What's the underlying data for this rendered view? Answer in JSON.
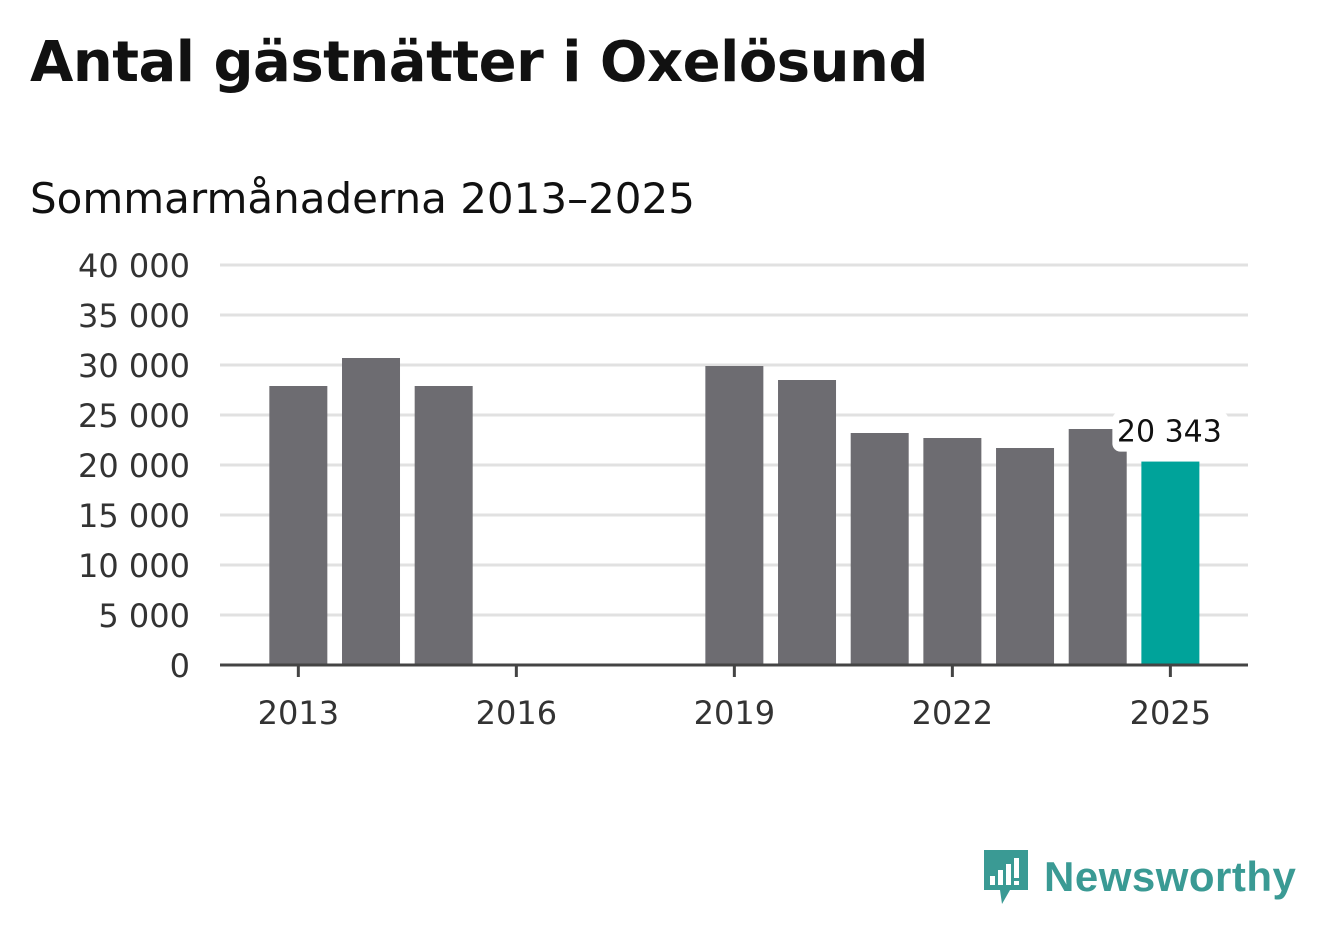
{
  "title": "Antal gästnätter i Oxelösund",
  "subtitle": "Sommarmånaderna 2013–2025",
  "brand": {
    "name": "Newsworthy",
    "color": "#3a9a94",
    "icon": "newsworthy-logo-icon"
  },
  "colors": {
    "bar": "#6d6c71",
    "highlight": "#00a39a",
    "grid": "#e1e1e1",
    "axis": "#444444"
  },
  "chart_data": {
    "type": "bar",
    "categories": [
      "2013",
      "2014",
      "2015",
      "2016",
      "2017",
      "2018",
      "2019",
      "2020",
      "2021",
      "2022",
      "2023",
      "2024",
      "2025"
    ],
    "values": [
      27900,
      30700,
      27900,
      null,
      null,
      null,
      29900,
      28500,
      23200,
      22700,
      21700,
      23600,
      20343
    ],
    "highlight_index": 12,
    "annotations": [
      {
        "category": "2025",
        "text": "20 343"
      }
    ],
    "xticks": [
      "2013",
      "2016",
      "2019",
      "2022",
      "2025"
    ],
    "yticks": [
      "0",
      "5 000",
      "10 000",
      "15 000",
      "20 000",
      "25 000",
      "30 000",
      "35 000",
      "40 000"
    ],
    "ylim": [
      0,
      40000
    ],
    "grid": true,
    "legend": "none"
  }
}
